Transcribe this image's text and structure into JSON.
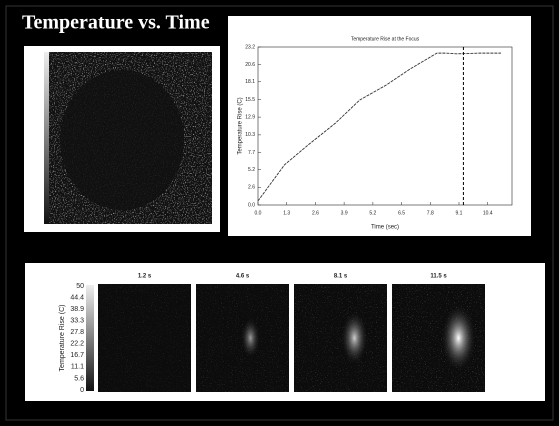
{
  "title": "Temperature vs. Time",
  "chart_data": {
    "type": "line",
    "title": "Temperature Rise at the Focus",
    "x_label": "Time (sec)",
    "y_label": "Temperature Rise (C)",
    "x": [
      0,
      1.2,
      2.3,
      3.5,
      4.6,
      5.8,
      6.9,
      8.1,
      8.5,
      9.0,
      10.0,
      11.0
    ],
    "series": [
      {
        "color": "#333333",
        "values": [
          0.6,
          5.9,
          8.9,
          12.0,
          15.4,
          17.6,
          20.0,
          22.3,
          22.3,
          22.2,
          22.3,
          22.3
        ]
      }
    ],
    "xlim": [
      0,
      11.5
    ],
    "ylim": [
      0,
      23.2
    ],
    "xticks": [
      {
        "value": 0,
        "label": "0.0"
      },
      1.3,
      2.6,
      3.9,
      5.2,
      6.5,
      7.8,
      9.1,
      10.4
    ],
    "yticks": [
      {
        "value": 0,
        "label": "0.0"
      },
      2.6,
      5.2,
      7.7,
      10.3,
      12.9,
      15.5,
      18.1,
      20.6,
      23.2
    ],
    "vline": 9.3
  },
  "colorbar": {
    "label": "Temperature Rise (C)",
    "ticks": [
      "50",
      "44.4",
      "38.9",
      "33.3",
      "27.8",
      "22.2",
      "16.7",
      "11.1",
      "5.6",
      "0"
    ]
  },
  "frames": [
    {
      "label": "1.2 s"
    },
    {
      "label": "4.6 s"
    },
    {
      "label": "8.1 s"
    },
    {
      "label": "11.5 s"
    }
  ]
}
